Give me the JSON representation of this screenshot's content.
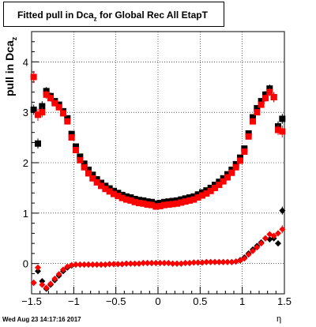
{
  "chart_data": {
    "type": "scatter",
    "title_prefix": "Fitted pull in Dca",
    "title_sub": "z",
    "title_suffix": " for Global Rec All EtapT",
    "ylabel_prefix": "pull in Dca",
    "ylabel_sub": "z",
    "xlabel": "η",
    "xlim": [
      -1.5,
      1.5
    ],
    "ylim": [
      -0.6,
      4.6
    ],
    "xticks": [
      -1.5,
      -1,
      -0.5,
      0,
      0.5,
      1,
      1.5
    ],
    "xtick_labels": [
      "−1.5",
      "−1",
      "−0.5",
      "0",
      "0.5",
      "1",
      "1.5"
    ],
    "yticks": [
      0,
      1,
      2,
      3,
      4
    ],
    "ytick_labels": [
      "0",
      "1",
      "2",
      "3",
      "4"
    ],
    "grid": true,
    "series": [
      {
        "marker": "square",
        "color": "#000000",
        "x": [
          -1.475,
          -1.425,
          -1.375,
          -1.325,
          -1.275,
          -1.225,
          -1.175,
          -1.125,
          -1.075,
          -1.025,
          -0.975,
          -0.925,
          -0.875,
          -0.825,
          -0.775,
          -0.725,
          -0.675,
          -0.625,
          -0.575,
          -0.525,
          -0.475,
          -0.425,
          -0.375,
          -0.325,
          -0.275,
          -0.225,
          -0.175,
          -0.125,
          -0.075,
          -0.025,
          0.025,
          0.075,
          0.125,
          0.175,
          0.225,
          0.275,
          0.325,
          0.375,
          0.425,
          0.475,
          0.525,
          0.575,
          0.625,
          0.675,
          0.725,
          0.775,
          0.825,
          0.875,
          0.925,
          0.975,
          1.025,
          1.075,
          1.125,
          1.175,
          1.225,
          1.275,
          1.325,
          1.375,
          1.425,
          1.475
        ],
        "y": [
          3.05,
          2.38,
          3.12,
          3.42,
          3.32,
          3.22,
          3.15,
          3.02,
          2.88,
          2.57,
          2.32,
          2.12,
          1.98,
          1.86,
          1.76,
          1.67,
          1.6,
          1.54,
          1.49,
          1.44,
          1.4,
          1.36,
          1.33,
          1.31,
          1.28,
          1.26,
          1.25,
          1.23,
          1.22,
          1.19,
          1.2,
          1.22,
          1.23,
          1.24,
          1.25,
          1.27,
          1.29,
          1.31,
          1.33,
          1.37,
          1.41,
          1.45,
          1.5,
          1.56,
          1.62,
          1.69,
          1.77,
          1.86,
          1.97,
          2.1,
          2.28,
          2.58,
          2.9,
          3.08,
          3.22,
          3.35,
          3.47,
          3.3,
          2.72,
          2.87
        ],
        "err": [
          0.1,
          0.1,
          0.1,
          0.08,
          0.07,
          0.06,
          0.06,
          0.05,
          0.05,
          0.05,
          0.04,
          0.04,
          0.03,
          0.03,
          0.03,
          0.03,
          0.03,
          0.03,
          0.03,
          0.03,
          0.02,
          0.02,
          0.02,
          0.02,
          0.02,
          0.02,
          0.02,
          0.02,
          0.02,
          0.02,
          0.02,
          0.02,
          0.02,
          0.02,
          0.02,
          0.02,
          0.02,
          0.02,
          0.02,
          0.02,
          0.02,
          0.03,
          0.03,
          0.03,
          0.03,
          0.03,
          0.03,
          0.03,
          0.04,
          0.04,
          0.05,
          0.05,
          0.05,
          0.06,
          0.06,
          0.07,
          0.08,
          0.1,
          0.1,
          0.1
        ]
      },
      {
        "marker": "square",
        "color": "#ff0000",
        "x": [
          -1.475,
          -1.425,
          -1.375,
          -1.325,
          -1.275,
          -1.225,
          -1.175,
          -1.125,
          -1.075,
          -1.025,
          -0.975,
          -0.925,
          -0.875,
          -0.825,
          -0.775,
          -0.725,
          -0.675,
          -0.625,
          -0.575,
          -0.525,
          -0.475,
          -0.425,
          -0.375,
          -0.325,
          -0.275,
          -0.225,
          -0.175,
          -0.125,
          -0.075,
          -0.025,
          0.025,
          0.075,
          0.125,
          0.175,
          0.225,
          0.275,
          0.325,
          0.375,
          0.425,
          0.475,
          0.525,
          0.575,
          0.625,
          0.675,
          0.725,
          0.775,
          0.825,
          0.875,
          0.925,
          0.975,
          1.025,
          1.075,
          1.125,
          1.175,
          1.225,
          1.275,
          1.325,
          1.375,
          1.425,
          1.475
        ],
        "y": [
          3.7,
          2.95,
          3.0,
          3.35,
          3.28,
          3.18,
          3.1,
          2.98,
          2.82,
          2.5,
          2.25,
          2.05,
          1.91,
          1.79,
          1.69,
          1.61,
          1.54,
          1.48,
          1.43,
          1.38,
          1.34,
          1.3,
          1.27,
          1.25,
          1.22,
          1.2,
          1.19,
          1.17,
          1.16,
          1.13,
          1.14,
          1.16,
          1.17,
          1.18,
          1.19,
          1.21,
          1.23,
          1.25,
          1.27,
          1.31,
          1.35,
          1.39,
          1.44,
          1.5,
          1.56,
          1.63,
          1.71,
          1.8,
          1.91,
          2.04,
          2.22,
          2.52,
          2.82,
          3.0,
          3.15,
          3.28,
          3.4,
          3.3,
          2.65,
          2.62
        ],
        "err": [
          0.12,
          0.12,
          0.1,
          0.08,
          0.07,
          0.06,
          0.06,
          0.05,
          0.05,
          0.05,
          0.04,
          0.04,
          0.03,
          0.03,
          0.03,
          0.03,
          0.03,
          0.03,
          0.03,
          0.03,
          0.02,
          0.02,
          0.02,
          0.02,
          0.02,
          0.02,
          0.02,
          0.02,
          0.02,
          0.02,
          0.02,
          0.02,
          0.02,
          0.02,
          0.02,
          0.02,
          0.02,
          0.02,
          0.02,
          0.02,
          0.02,
          0.03,
          0.03,
          0.03,
          0.03,
          0.03,
          0.03,
          0.03,
          0.04,
          0.04,
          0.05,
          0.05,
          0.05,
          0.06,
          0.06,
          0.07,
          0.08,
          0.1,
          0.1,
          0.12
        ]
      },
      {
        "marker": "diamond",
        "color": "#000000",
        "x": [
          -1.475,
          -1.425,
          -1.375,
          -1.325,
          -1.275,
          -1.225,
          -1.175,
          -1.125,
          -1.075,
          -1.025,
          -0.975,
          -0.925,
          -0.875,
          -0.825,
          -0.775,
          -0.725,
          -0.675,
          -0.625,
          -0.575,
          -0.525,
          -0.475,
          -0.425,
          -0.375,
          -0.325,
          -0.275,
          -0.225,
          -0.175,
          -0.125,
          -0.075,
          -0.025,
          0.025,
          0.075,
          0.125,
          0.175,
          0.225,
          0.275,
          0.325,
          0.375,
          0.425,
          0.475,
          0.525,
          0.575,
          0.625,
          0.675,
          0.725,
          0.775,
          0.825,
          0.875,
          0.925,
          0.975,
          1.025,
          1.075,
          1.125,
          1.175,
          1.225,
          1.275,
          1.325,
          1.375,
          1.425,
          1.475
        ],
        "y": [
          -0.38,
          -0.15,
          -0.35,
          -0.5,
          -0.42,
          -0.33,
          -0.24,
          -0.15,
          -0.08,
          -0.04,
          -0.02,
          -0.02,
          -0.02,
          -0.02,
          -0.02,
          -0.02,
          -0.02,
          -0.02,
          -0.01,
          -0.01,
          -0.01,
          -0.01,
          0.0,
          0.0,
          0.0,
          0.0,
          0.01,
          0.01,
          0.01,
          0.01,
          0.01,
          0.01,
          0.01,
          0.0,
          0.0,
          0.0,
          0.01,
          0.01,
          0.02,
          0.02,
          0.02,
          0.03,
          0.03,
          0.03,
          0.03,
          0.03,
          0.03,
          0.03,
          0.04,
          0.07,
          0.12,
          0.2,
          0.28,
          0.35,
          0.42,
          0.5,
          0.48,
          0.5,
          0.4,
          1.05
        ],
        "err": [
          0.06,
          0.06,
          0.05,
          0.04,
          0.04,
          0.03,
          0.03,
          0.02,
          0.02,
          0.02,
          0.02,
          0.02,
          0.02,
          0.02,
          0.02,
          0.02,
          0.02,
          0.02,
          0.02,
          0.02,
          0.02,
          0.02,
          0.02,
          0.02,
          0.02,
          0.02,
          0.02,
          0.02,
          0.02,
          0.02,
          0.02,
          0.02,
          0.02,
          0.02,
          0.02,
          0.02,
          0.02,
          0.02,
          0.02,
          0.02,
          0.02,
          0.02,
          0.02,
          0.02,
          0.02,
          0.02,
          0.02,
          0.02,
          0.02,
          0.02,
          0.02,
          0.02,
          0.03,
          0.03,
          0.03,
          0.04,
          0.04,
          0.05,
          0.06,
          0.08
        ]
      },
      {
        "marker": "diamond",
        "color": "#ff0000",
        "x": [
          -1.475,
          -1.425,
          -1.375,
          -1.325,
          -1.275,
          -1.225,
          -1.175,
          -1.125,
          -1.075,
          -1.025,
          -0.975,
          -0.925,
          -0.875,
          -0.825,
          -0.775,
          -0.725,
          -0.675,
          -0.625,
          -0.575,
          -0.525,
          -0.475,
          -0.425,
          -0.375,
          -0.325,
          -0.275,
          -0.225,
          -0.175,
          -0.125,
          -0.075,
          -0.025,
          0.025,
          0.075,
          0.125,
          0.175,
          0.225,
          0.275,
          0.325,
          0.375,
          0.425,
          0.475,
          0.525,
          0.575,
          0.625,
          0.675,
          0.725,
          0.775,
          0.825,
          0.875,
          0.925,
          0.975,
          1.025,
          1.075,
          1.125,
          1.175,
          1.225,
          1.275,
          1.325,
          1.375,
          1.425,
          1.475
        ],
        "y": [
          -0.38,
          -0.08,
          -0.42,
          -0.48,
          -0.4,
          -0.3,
          -0.21,
          -0.12,
          -0.06,
          -0.03,
          -0.02,
          -0.02,
          -0.02,
          -0.02,
          -0.02,
          -0.02,
          -0.02,
          -0.02,
          -0.01,
          -0.01,
          -0.01,
          -0.01,
          0.0,
          0.0,
          0.0,
          0.0,
          0.01,
          0.01,
          0.01,
          0.01,
          0.01,
          0.01,
          0.01,
          0.0,
          0.0,
          0.0,
          0.01,
          0.01,
          0.02,
          0.02,
          0.02,
          0.03,
          0.03,
          0.03,
          0.03,
          0.03,
          0.03,
          0.03,
          0.04,
          0.06,
          0.1,
          0.18,
          0.25,
          0.32,
          0.4,
          0.5,
          0.58,
          0.55,
          0.6,
          0.68
        ],
        "err": [
          0.06,
          0.06,
          0.05,
          0.04,
          0.04,
          0.03,
          0.03,
          0.02,
          0.02,
          0.02,
          0.02,
          0.02,
          0.02,
          0.02,
          0.02,
          0.02,
          0.02,
          0.02,
          0.02,
          0.02,
          0.02,
          0.02,
          0.02,
          0.02,
          0.02,
          0.02,
          0.02,
          0.02,
          0.02,
          0.02,
          0.02,
          0.02,
          0.02,
          0.02,
          0.02,
          0.02,
          0.02,
          0.02,
          0.02,
          0.02,
          0.02,
          0.02,
          0.02,
          0.02,
          0.02,
          0.02,
          0.02,
          0.02,
          0.02,
          0.02,
          0.02,
          0.02,
          0.03,
          0.03,
          0.03,
          0.04,
          0.04,
          0.05,
          0.06,
          0.08
        ]
      }
    ]
  },
  "footer": {
    "timestamp": "Wed Aug 23 14:17:16 2017"
  }
}
